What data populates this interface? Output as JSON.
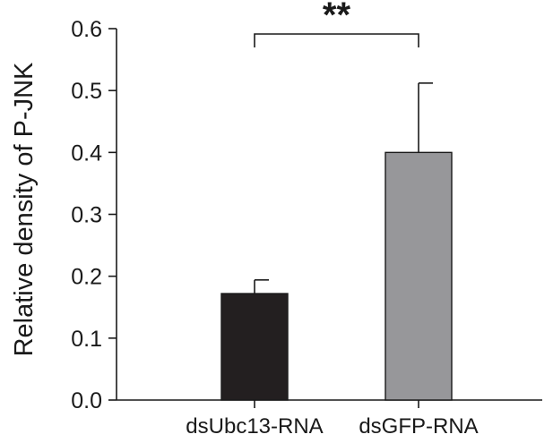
{
  "chart_data": {
    "type": "bar",
    "categories": [
      "dsUbc13-RNA",
      "dsGFP-RNA"
    ],
    "values": [
      0.172,
      0.4
    ],
    "errors": [
      0.022,
      0.112
    ],
    "colors": [
      "#231f20",
      "#97979a"
    ],
    "ylabel": "Relative density of P-JNK",
    "xlabel": "",
    "ylim": [
      0,
      0.6
    ],
    "yticks": [
      "0.0",
      "0.1",
      "0.2",
      "0.3",
      "0.4",
      "0.5",
      "0.6"
    ],
    "annotation": {
      "text": "**",
      "between": [
        "dsUbc13-RNA",
        "dsGFP-RNA"
      ]
    },
    "grid": false,
    "legend": "none"
  }
}
